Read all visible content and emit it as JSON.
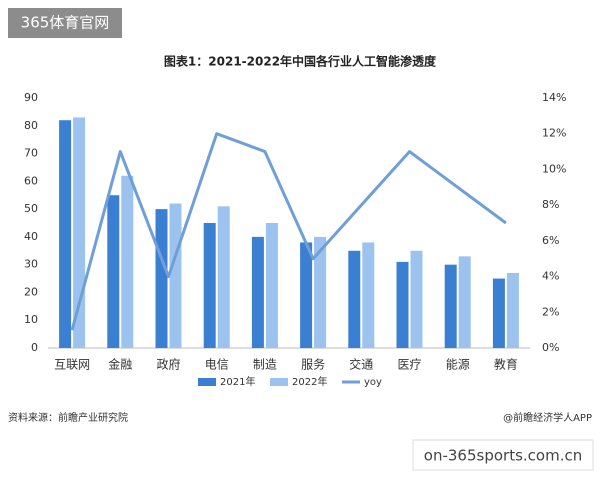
{
  "badge": "365体育官网",
  "chart_data": {
    "type": "bar-line",
    "title": "图表1：2021-2022年中国各行业人工智能渗透度",
    "categories": [
      "互联网",
      "金融",
      "政府",
      "电信",
      "制造",
      "服务",
      "交通",
      "医疗",
      "能源",
      "教育"
    ],
    "series": [
      {
        "name": "2021年",
        "type": "bar",
        "color": "#3a7fd2",
        "values": [
          82,
          55,
          50,
          45,
          40,
          38,
          35,
          31,
          30,
          25
        ]
      },
      {
        "name": "2022年",
        "type": "bar",
        "color": "#9cc3ee",
        "values": [
          83,
          62,
          52,
          51,
          45,
          40,
          38,
          35,
          33,
          27
        ]
      },
      {
        "name": "yoy",
        "type": "line",
        "axis": "y2",
        "color": "#6f9fd8",
        "values": [
          1,
          11,
          4,
          12,
          11,
          5,
          8,
          11,
          9,
          7
        ]
      }
    ],
    "ylim": [
      0,
      90
    ],
    "yticks": [
      0,
      10,
      20,
      30,
      40,
      50,
      60,
      70,
      80,
      90
    ],
    "y2lim": [
      0,
      14
    ],
    "y2ticks": [
      {
        "value": 0,
        "label": "0%"
      },
      {
        "value": 2,
        "label": "2%"
      },
      {
        "value": 4,
        "label": "4%"
      },
      {
        "value": 6,
        "label": "6%"
      },
      {
        "value": 8,
        "label": "8%"
      },
      {
        "value": 10,
        "label": "10%"
      },
      {
        "value": 12,
        "label": "12%"
      },
      {
        "value": 14,
        "label": "14%"
      }
    ],
    "grid": false,
    "legend": "bottom"
  },
  "footer": {
    "source": "资料来源：前瞻产业研究院",
    "credit": "@前瞻经济学人APP"
  },
  "url": "on-365sports.com.cn"
}
